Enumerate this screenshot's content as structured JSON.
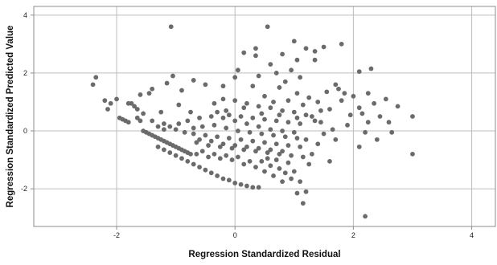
{
  "chart_data": {
    "type": "scatter",
    "title": "",
    "xlabel": "Regression Standardized Residual",
    "ylabel": "Regression Standardized Predicted Value",
    "xlim": [
      -3.4,
      4.4
    ],
    "ylim": [
      -3.3,
      4.3
    ],
    "xticks": [
      -2,
      0,
      2,
      4
    ],
    "yticks": [
      -2,
      0,
      2,
      4
    ],
    "grid": true,
    "colors": {
      "point": "#6b6b6b",
      "grid": "#bdbdbd",
      "frame": "#8c8c8c",
      "background": "#ffffff"
    },
    "series": [
      {
        "points": [
          [
            -2.4,
            1.6
          ],
          [
            -2.35,
            1.85
          ],
          [
            -2.2,
            1.05
          ],
          [
            -2.15,
            0.75
          ],
          [
            -2.1,
            0.95
          ],
          [
            -2.0,
            1.1
          ],
          [
            -1.95,
            0.45
          ],
          [
            -1.9,
            0.4
          ],
          [
            -1.85,
            0.35
          ],
          [
            -1.8,
            0.3
          ],
          [
            -1.75,
            0.95
          ],
          [
            -1.7,
            0.85
          ],
          [
            -1.65,
            0.75
          ],
          [
            -1.65,
            0.45
          ],
          [
            -1.6,
            0.35
          ],
          [
            -1.6,
            1.25
          ],
          [
            -1.55,
            0.0
          ],
          [
            -1.5,
            -0.05
          ],
          [
            -1.45,
            1.3
          ],
          [
            -1.45,
            -0.1
          ],
          [
            -1.4,
            1.45
          ],
          [
            -1.4,
            -0.15
          ],
          [
            -1.35,
            -0.2
          ],
          [
            -1.3,
            -0.25
          ],
          [
            -1.25,
            -0.3
          ],
          [
            -1.25,
            0.65
          ],
          [
            -1.2,
            -0.35
          ],
          [
            -1.2,
            0.25
          ],
          [
            -1.15,
            1.65
          ],
          [
            -1.15,
            -0.4
          ],
          [
            -1.1,
            -0.45
          ],
          [
            -1.1,
            0.15
          ],
          [
            -1.08,
            3.6
          ],
          [
            -1.05,
            1.9
          ],
          [
            -1.05,
            -0.5
          ],
          [
            -1.0,
            -0.55
          ],
          [
            -1.0,
            0.05
          ],
          [
            -0.95,
            -0.6
          ],
          [
            -0.95,
            0.9
          ],
          [
            -0.9,
            1.4
          ],
          [
            -0.9,
            -0.65
          ],
          [
            -0.85,
            -0.05
          ],
          [
            -0.85,
            -0.7
          ],
          [
            -0.8,
            -0.75
          ],
          [
            -0.8,
            0.35
          ],
          [
            -0.75,
            -0.8
          ],
          [
            -0.75,
            0.65
          ],
          [
            -0.7,
            1.75
          ],
          [
            -0.7,
            -0.1
          ],
          [
            -0.65,
            -0.4
          ],
          [
            -0.6,
            0.45
          ],
          [
            -0.55,
            0.15
          ],
          [
            -0.5,
            1.6
          ],
          [
            -0.5,
            -0.15
          ],
          [
            -0.45,
            -0.5
          ],
          [
            -0.4,
            0.5
          ],
          [
            -0.35,
            0.2
          ],
          [
            -0.3,
            -0.2
          ],
          [
            -0.25,
            -0.55
          ],
          [
            -0.2,
            0.45
          ],
          [
            -0.15,
            0.1
          ],
          [
            -0.1,
            -0.25
          ],
          [
            -0.05,
            -0.6
          ],
          [
            0.0,
            0.35
          ],
          [
            0.05,
            0.0
          ],
          [
            0.1,
            -0.3
          ],
          [
            0.15,
            -0.65
          ],
          [
            0.2,
            0.25
          ],
          [
            0.25,
            -0.05
          ],
          [
            0.3,
            -0.35
          ],
          [
            0.35,
            -0.7
          ],
          [
            0.4,
            0.15
          ],
          [
            0.45,
            -0.1
          ],
          [
            0.5,
            -0.4
          ],
          [
            0.55,
            -0.75
          ],
          [
            0.6,
            0.05
          ],
          [
            0.65,
            -0.15
          ],
          [
            0.7,
            -0.45
          ],
          [
            0.75,
            -0.8
          ],
          [
            0.8,
            0.0
          ],
          [
            0.85,
            -0.2
          ],
          [
            0.9,
            -0.5
          ],
          [
            0.95,
            -0.85
          ],
          [
            1.0,
            -0.05
          ],
          [
            1.05,
            -0.25
          ],
          [
            1.1,
            -0.55
          ],
          [
            1.15,
            -0.9
          ],
          [
            1.2,
            -0.3
          ],
          [
            -1.3,
            -0.55
          ],
          [
            -1.2,
            -0.65
          ],
          [
            -1.1,
            -0.75
          ],
          [
            -1.0,
            -0.85
          ],
          [
            -0.9,
            -0.95
          ],
          [
            -0.8,
            -1.05
          ],
          [
            -0.7,
            -1.15
          ],
          [
            -0.6,
            -1.25
          ],
          [
            -0.5,
            -1.35
          ],
          [
            -0.4,
            -1.45
          ],
          [
            -0.3,
            -1.55
          ],
          [
            -0.2,
            -1.65
          ],
          [
            -0.1,
            -1.7
          ],
          [
            0.0,
            -1.8
          ],
          [
            0.1,
            -1.85
          ],
          [
            0.2,
            -1.9
          ],
          [
            0.3,
            -1.95
          ],
          [
            0.4,
            -1.95
          ],
          [
            -0.6,
            -0.3
          ],
          [
            -0.4,
            -0.35
          ],
          [
            -0.2,
            -0.45
          ],
          [
            0.0,
            -0.5
          ],
          [
            0.2,
            -0.55
          ],
          [
            0.4,
            -0.6
          ],
          [
            0.6,
            -0.65
          ],
          [
            0.8,
            -0.7
          ],
          [
            -0.3,
            0.65
          ],
          [
            -0.1,
            0.55
          ],
          [
            0.1,
            0.5
          ],
          [
            0.3,
            0.45
          ],
          [
            0.5,
            0.4
          ],
          [
            0.7,
            0.35
          ],
          [
            0.9,
            0.3
          ],
          [
            1.1,
            0.25
          ],
          [
            -0.2,
            1.1
          ],
          [
            0.0,
            1.05
          ],
          [
            0.2,
            0.95
          ],
          [
            0.4,
            0.85
          ],
          [
            0.6,
            0.8
          ],
          [
            0.8,
            0.7
          ],
          [
            1.0,
            0.65
          ],
          [
            1.2,
            0.55
          ],
          [
            -0.2,
            1.55
          ],
          [
            0.0,
            1.85
          ],
          [
            0.05,
            2.1
          ],
          [
            0.15,
            2.7
          ],
          [
            0.3,
            1.55
          ],
          [
            0.35,
            2.6
          ],
          [
            0.35,
            2.85
          ],
          [
            0.4,
            1.9
          ],
          [
            0.5,
            1.2
          ],
          [
            0.55,
            3.6
          ],
          [
            0.6,
            2.3
          ],
          [
            0.65,
            1.0
          ],
          [
            0.7,
            2.0
          ],
          [
            0.75,
            1.5
          ],
          [
            0.8,
            2.65
          ],
          [
            0.85,
            1.7
          ],
          [
            0.9,
            1.05
          ],
          [
            0.95,
            2.1
          ],
          [
            1.0,
            3.1
          ],
          [
            1.05,
            1.3
          ],
          [
            1.05,
            2.45
          ],
          [
            1.1,
            1.85
          ],
          [
            1.15,
            0.9
          ],
          [
            1.2,
            2.85
          ],
          [
            1.25,
            1.15
          ],
          [
            1.3,
            0.5
          ],
          [
            1.35,
            2.45
          ],
          [
            1.35,
            2.75
          ],
          [
            1.4,
            1.0
          ],
          [
            1.45,
            0.3
          ],
          [
            1.5,
            2.9
          ],
          [
            1.55,
            1.35
          ],
          [
            1.6,
            0.75
          ],
          [
            1.65,
            0.05
          ],
          [
            1.7,
            1.6
          ],
          [
            1.75,
            1.45
          ],
          [
            1.8,
            3.0
          ],
          [
            1.85,
            1.3
          ],
          [
            1.9,
            0.2
          ],
          [
            2.0,
            1.2
          ],
          [
            2.1,
            2.05
          ],
          [
            2.15,
            0.6
          ],
          [
            2.2,
            -0.05
          ],
          [
            2.25,
            0.3
          ],
          [
            2.25,
            1.3
          ],
          [
            2.3,
            2.15
          ],
          [
            2.35,
            0.95
          ],
          [
            2.4,
            -0.3
          ],
          [
            2.45,
            0.5
          ],
          [
            2.55,
            1.1
          ],
          [
            2.6,
            0.3
          ],
          [
            2.65,
            -0.05
          ],
          [
            2.75,
            0.85
          ],
          [
            3.0,
            0.5
          ],
          [
            3.0,
            -0.8
          ],
          [
            2.2,
            -2.95
          ],
          [
            2.1,
            -0.55
          ],
          [
            1.7,
            -0.3
          ],
          [
            1.6,
            -1.05
          ],
          [
            1.5,
            -0.1
          ],
          [
            1.4,
            -0.45
          ],
          [
            1.3,
            -0.8
          ],
          [
            1.25,
            -1.15
          ],
          [
            1.2,
            -2.1
          ],
          [
            1.15,
            -2.5
          ],
          [
            1.1,
            -1.75
          ],
          [
            1.05,
            -2.15
          ],
          [
            1.0,
            -1.4
          ],
          [
            0.95,
            -1.65
          ],
          [
            0.9,
            -1.1
          ],
          [
            0.85,
            -1.45
          ],
          [
            0.8,
            -1.75
          ],
          [
            0.75,
            -1.3
          ],
          [
            0.7,
            -1.0
          ],
          [
            0.65,
            -1.55
          ],
          [
            0.6,
            -1.2
          ],
          [
            0.55,
            -0.95
          ],
          [
            0.5,
            -1.4
          ],
          [
            0.45,
            -1.05
          ],
          [
            0.35,
            -1.25
          ],
          [
            0.25,
            -1.05
          ],
          [
            0.15,
            -1.15
          ],
          [
            0.05,
            -0.9
          ],
          [
            -0.05,
            -1.0
          ],
          [
            -0.15,
            -0.85
          ],
          [
            -0.25,
            -0.95
          ],
          [
            -0.35,
            -0.8
          ],
          [
            -0.45,
            -0.9
          ],
          [
            -0.55,
            -0.7
          ],
          [
            -0.65,
            -0.8
          ],
          [
            -1.4,
            0.35
          ],
          [
            -1.3,
            0.15
          ],
          [
            -1.2,
            0.05
          ],
          [
            -0.95,
            0.25
          ],
          [
            -0.7,
            0.1
          ],
          [
            -0.35,
            0.95
          ],
          [
            -0.15,
            0.7
          ],
          [
            0.15,
            0.8
          ],
          [
            0.45,
            0.6
          ],
          [
            0.75,
            0.55
          ],
          [
            1.05,
            0.45
          ],
          [
            1.35,
            0.35
          ],
          [
            1.45,
            0.7
          ],
          [
            1.8,
            1.05
          ],
          [
            1.95,
            0.55
          ],
          [
            2.1,
            0.8
          ],
          [
            -1.8,
            0.95
          ],
          [
            -1.55,
            0.6
          ]
        ]
      }
    ]
  }
}
